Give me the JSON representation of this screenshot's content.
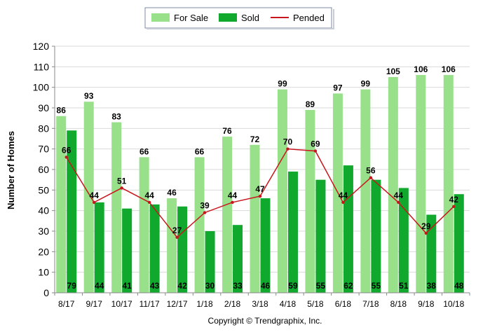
{
  "chart_data": {
    "type": "bar",
    "categories": [
      "8/17",
      "9/17",
      "10/17",
      "11/17",
      "12/17",
      "1/18",
      "2/18",
      "3/18",
      "4/18",
      "5/18",
      "6/18",
      "7/18",
      "8/18",
      "9/18",
      "10/18"
    ],
    "series": [
      {
        "name": "For Sale",
        "type": "bar",
        "color": "#99e08a",
        "values": [
          86,
          93,
          83,
          66,
          46,
          66,
          76,
          72,
          99,
          89,
          97,
          99,
          105,
          106,
          106
        ]
      },
      {
        "name": "Sold",
        "type": "bar",
        "color": "#10a82d",
        "values": [
          79,
          44,
          41,
          43,
          42,
          30,
          33,
          46,
          59,
          55,
          62,
          55,
          51,
          38,
          48
        ]
      },
      {
        "name": "Pended",
        "type": "line",
        "color": "#c8161d",
        "values": [
          66,
          44,
          51,
          44,
          27,
          39,
          44,
          47,
          70,
          69,
          44,
          56,
          44,
          29,
          42
        ]
      }
    ],
    "ylabel": "Number of Homes",
    "xlabel": "",
    "ylim": [
      0,
      120
    ],
    "yticks": [
      0,
      10,
      20,
      30,
      40,
      50,
      60,
      70,
      80,
      90,
      100,
      110,
      120
    ],
    "grid": true,
    "legend": "top-center",
    "copyright": "Copyright © Trendgraphix, Inc."
  }
}
